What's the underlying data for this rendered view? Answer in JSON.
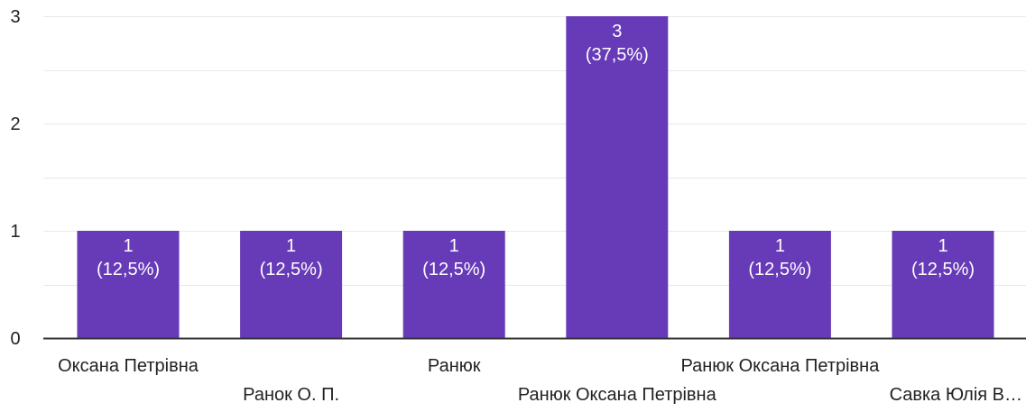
{
  "chart_data": {
    "type": "bar",
    "title": "",
    "xlabel": "",
    "ylabel": "",
    "categories": [
      "Оксана Петрівна",
      "Ранок О. П.",
      "Ранюк",
      "Ранюк Оксана Петрівна",
      "Ранюк Оксана Петрівна",
      "Савка Юлія В…"
    ],
    "values": [
      1,
      1,
      1,
      3,
      1,
      1
    ],
    "value_labels": [
      [
        "1",
        "(12,5%)"
      ],
      [
        "1",
        "(12,5%)"
      ],
      [
        "1",
        "(12,5%)"
      ],
      [
        "3",
        "(37,5%)"
      ],
      [
        "1",
        "(12,5%)"
      ],
      [
        "1",
        "(12,5%)"
      ]
    ],
    "yticks": [
      "0",
      "1",
      "2",
      "3"
    ],
    "ylim": [
      0,
      3
    ],
    "minor_gridlines": true,
    "grid": true,
    "legend": "none",
    "bar_color": "#673ab7",
    "grid_color": "#e8e8e8",
    "axis_color": "#333333"
  }
}
